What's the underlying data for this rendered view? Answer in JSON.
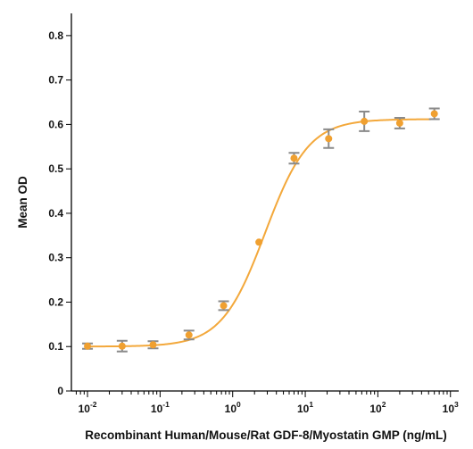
{
  "chart_data": {
    "type": "scatter",
    "title": "",
    "xlabel": "Recombinant Human/Mouse/Rat GDF-8/Myostatin GMP (ng/mL)",
    "ylabel": "Mean OD",
    "x_scale": "log",
    "xlim": [
      0.006,
      1300
    ],
    "ylim": [
      0,
      0.85
    ],
    "x_ticks": [
      0.01,
      0.1,
      1,
      10,
      100,
      1000
    ],
    "x_tick_labels": [
      {
        "base": "10",
        "exp": "-2"
      },
      {
        "base": "10",
        "exp": "-1"
      },
      {
        "base": "10",
        "exp": "0"
      },
      {
        "base": "10",
        "exp": "1"
      },
      {
        "base": "10",
        "exp": "2"
      },
      {
        "base": "10",
        "exp": "3"
      }
    ],
    "y_ticks": [
      0,
      0.1,
      0.2,
      0.3,
      0.4,
      0.5,
      0.6,
      0.7,
      0.8
    ],
    "y_tick_labels": [
      "0",
      "0.1",
      "0.2",
      "0.3",
      "0.4",
      "0.5",
      "0.6",
      "0.7",
      "0.8"
    ],
    "grid": false,
    "series": [
      {
        "x": [
          0.01,
          0.03,
          0.08,
          0.25,
          0.75,
          2.3,
          7,
          21,
          65,
          200,
          600
        ],
        "y": [
          0.101,
          0.101,
          0.104,
          0.126,
          0.192,
          0.335,
          0.524,
          0.568,
          0.607,
          0.603,
          0.624
        ],
        "error": [
          0.006,
          0.012,
          0.008,
          0.01,
          0.01,
          0.0,
          0.012,
          0.021,
          0.022,
          0.012,
          0.012
        ]
      }
    ],
    "fit_curve": {
      "bottom": 0.1,
      "top": 0.612,
      "ec50": 2.8,
      "hill": 1.45
    },
    "colors": {
      "points": "#f0a030",
      "curve": "#f3a83b",
      "error_bars": "#8a8a8a",
      "axes": "#000000"
    }
  }
}
